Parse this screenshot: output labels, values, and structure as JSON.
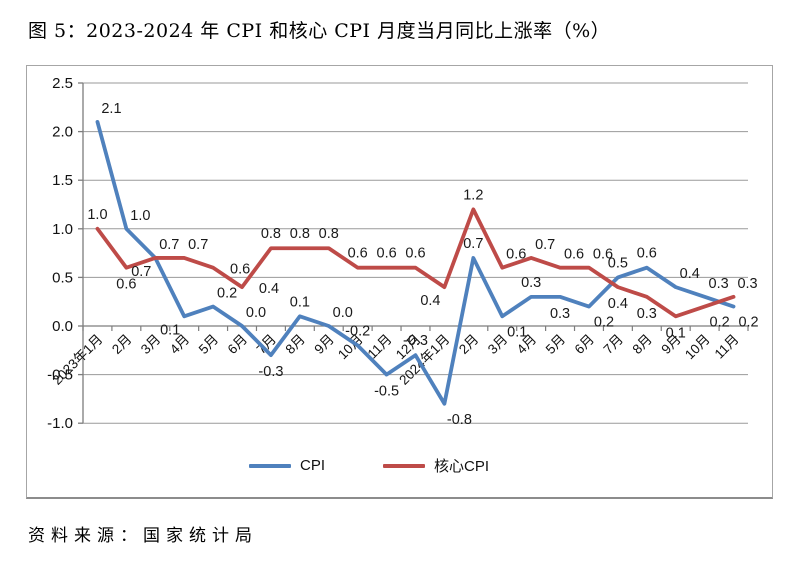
{
  "page": {
    "title": "图 5：2023-2024 年 CPI 和核心 CPI 月度当月同比上涨率（%）",
    "source": "资料来源：国家统计局"
  },
  "legend": {
    "position": "bottom",
    "items": [
      {
        "label": "CPI",
        "color": "#4F81BD"
      },
      {
        "label": "核心CPI",
        "color": "#BE4B48"
      }
    ]
  },
  "chart_data": {
    "type": "line",
    "title": "图 5：2023-2024 年 CPI 和核心 CPI 月度当月同比上涨率（%）",
    "xlabel": "",
    "ylabel": "",
    "ylim": [
      -1.0,
      2.5
    ],
    "ytick_step": 0.5,
    "ytick_labels": [
      "2.5",
      "2.0",
      "1.5",
      "1.0",
      "0.5",
      "0.0",
      "-0.5",
      "-1.0"
    ],
    "grid": true,
    "grid_color": "#9a9a9a",
    "axis_color": "#7d7d7d",
    "label_color": "#1a1a1a",
    "value_format": "one-decimal",
    "legend_position": "bottom",
    "categories": [
      "2023年1月",
      "2月",
      "3月",
      "4月",
      "5月",
      "6月",
      "7月",
      "8月",
      "9月",
      "10月",
      "11月",
      "12月",
      "2024年1月",
      "2月",
      "3月",
      "4月",
      "5月",
      "6月",
      "7月",
      "8月",
      "9月",
      "10月",
      "11月"
    ],
    "series": [
      {
        "name": "CPI",
        "color": "#4F81BD",
        "values": [
          2.1,
          1.0,
          0.7,
          0.1,
          0.2,
          0.0,
          -0.3,
          0.1,
          0.0,
          -0.2,
          -0.5,
          -0.3,
          -0.8,
          0.7,
          0.1,
          0.3,
          0.3,
          0.2,
          0.5,
          0.6,
          0.4,
          0.3,
          0.2
        ],
        "label_pos": [
          "above-right",
          "above-right",
          "below-left",
          "below-left",
          "above-right",
          "above-right",
          "below",
          "above",
          "above-right",
          "above",
          "below",
          "above",
          "below-right",
          "above",
          "below-right",
          "above",
          "below",
          "below-right",
          "above",
          "above",
          "above-right",
          "above-right",
          "below-right"
        ]
      },
      {
        "name": "核心CPI",
        "color": "#BE4B48",
        "values": [
          1.0,
          0.6,
          0.7,
          0.7,
          0.6,
          0.4,
          0.8,
          0.8,
          0.8,
          0.6,
          0.6,
          0.6,
          0.4,
          1.2,
          0.6,
          0.7,
          0.6,
          0.6,
          0.4,
          0.3,
          0.1,
          0.2,
          0.3
        ],
        "label_pos": [
          "above",
          "below",
          "above-right",
          "above-right",
          "right",
          "right",
          "above",
          "above",
          "above",
          "above",
          "above",
          "above",
          "below-left",
          "above",
          "above-right",
          "above-right",
          "above-right",
          "above-right",
          "below",
          "below",
          "below",
          "below-right",
          "above-right"
        ]
      }
    ]
  }
}
